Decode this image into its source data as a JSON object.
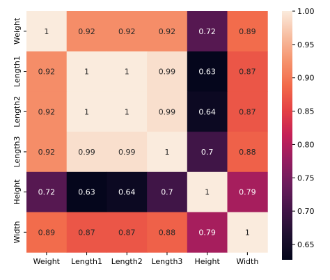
{
  "chart_data": {
    "type": "heatmap",
    "x_labels": [
      "Weight",
      "Length1",
      "Length2",
      "Length3",
      "Height",
      "Width"
    ],
    "y_labels": [
      "Weight",
      "Length1",
      "Length2",
      "Length3",
      "Height",
      "Width"
    ],
    "values": [
      [
        1,
        0.92,
        0.92,
        0.92,
        0.72,
        0.89
      ],
      [
        0.92,
        1,
        1,
        0.99,
        0.63,
        0.87
      ],
      [
        0.92,
        1,
        1,
        0.99,
        0.64,
        0.87
      ],
      [
        0.92,
        0.99,
        0.99,
        1,
        0.7,
        0.88
      ],
      [
        0.72,
        0.63,
        0.64,
        0.7,
        1,
        0.79
      ],
      [
        0.89,
        0.87,
        0.87,
        0.88,
        0.79,
        1
      ]
    ],
    "annotations": [
      [
        "1",
        "0.92",
        "0.92",
        "0.92",
        "0.72",
        "0.89"
      ],
      [
        "0.92",
        "1",
        "1",
        "0.99",
        "0.63",
        "0.87"
      ],
      [
        "0.92",
        "1",
        "1",
        "0.99",
        "0.64",
        "0.87"
      ],
      [
        "0.92",
        "0.99",
        "0.99",
        "1",
        "0.7",
        "0.88"
      ],
      [
        "0.72",
        "0.63",
        "0.64",
        "0.7",
        "1",
        "0.79"
      ],
      [
        "0.89",
        "0.87",
        "0.87",
        "0.88",
        "0.79",
        "1"
      ]
    ],
    "colorbar": {
      "range": [
        0.627,
        1.0
      ],
      "ticks": [
        0.65,
        0.7,
        0.75,
        0.8,
        0.85,
        0.9,
        0.95,
        1.0
      ],
      "tick_labels": [
        "0.65",
        "0.70",
        "0.75",
        "0.80",
        "0.85",
        "0.90",
        "0.95",
        "1.00"
      ],
      "colormap": "rocket"
    }
  }
}
